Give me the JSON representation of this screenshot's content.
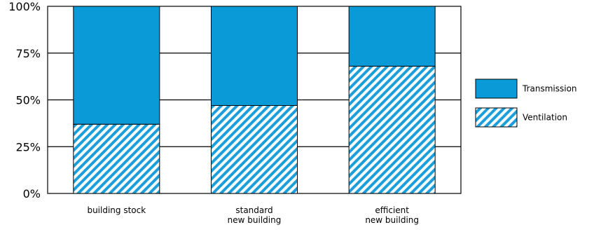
{
  "chart_data": {
    "type": "bar",
    "stacked": true,
    "categories": [
      [
        "building stock"
      ],
      [
        "standard",
        "new building"
      ],
      [
        "efficient",
        "new building"
      ]
    ],
    "series": [
      {
        "name": "Ventilation",
        "values": [
          37,
          47,
          68
        ],
        "color": "#1a9fdc",
        "pattern": "diagonal-hatch"
      },
      {
        "name": "Transmission",
        "values": [
          63,
          53,
          32
        ],
        "color": "#0a9ad8",
        "pattern": "solid"
      }
    ],
    "yticks": [
      "0%",
      "25%",
      "50%",
      "75%",
      "100%"
    ],
    "ylim": [
      0,
      100
    ],
    "grid": true,
    "legend": {
      "position": "right",
      "order": [
        "Transmission",
        "Ventilation"
      ]
    }
  }
}
